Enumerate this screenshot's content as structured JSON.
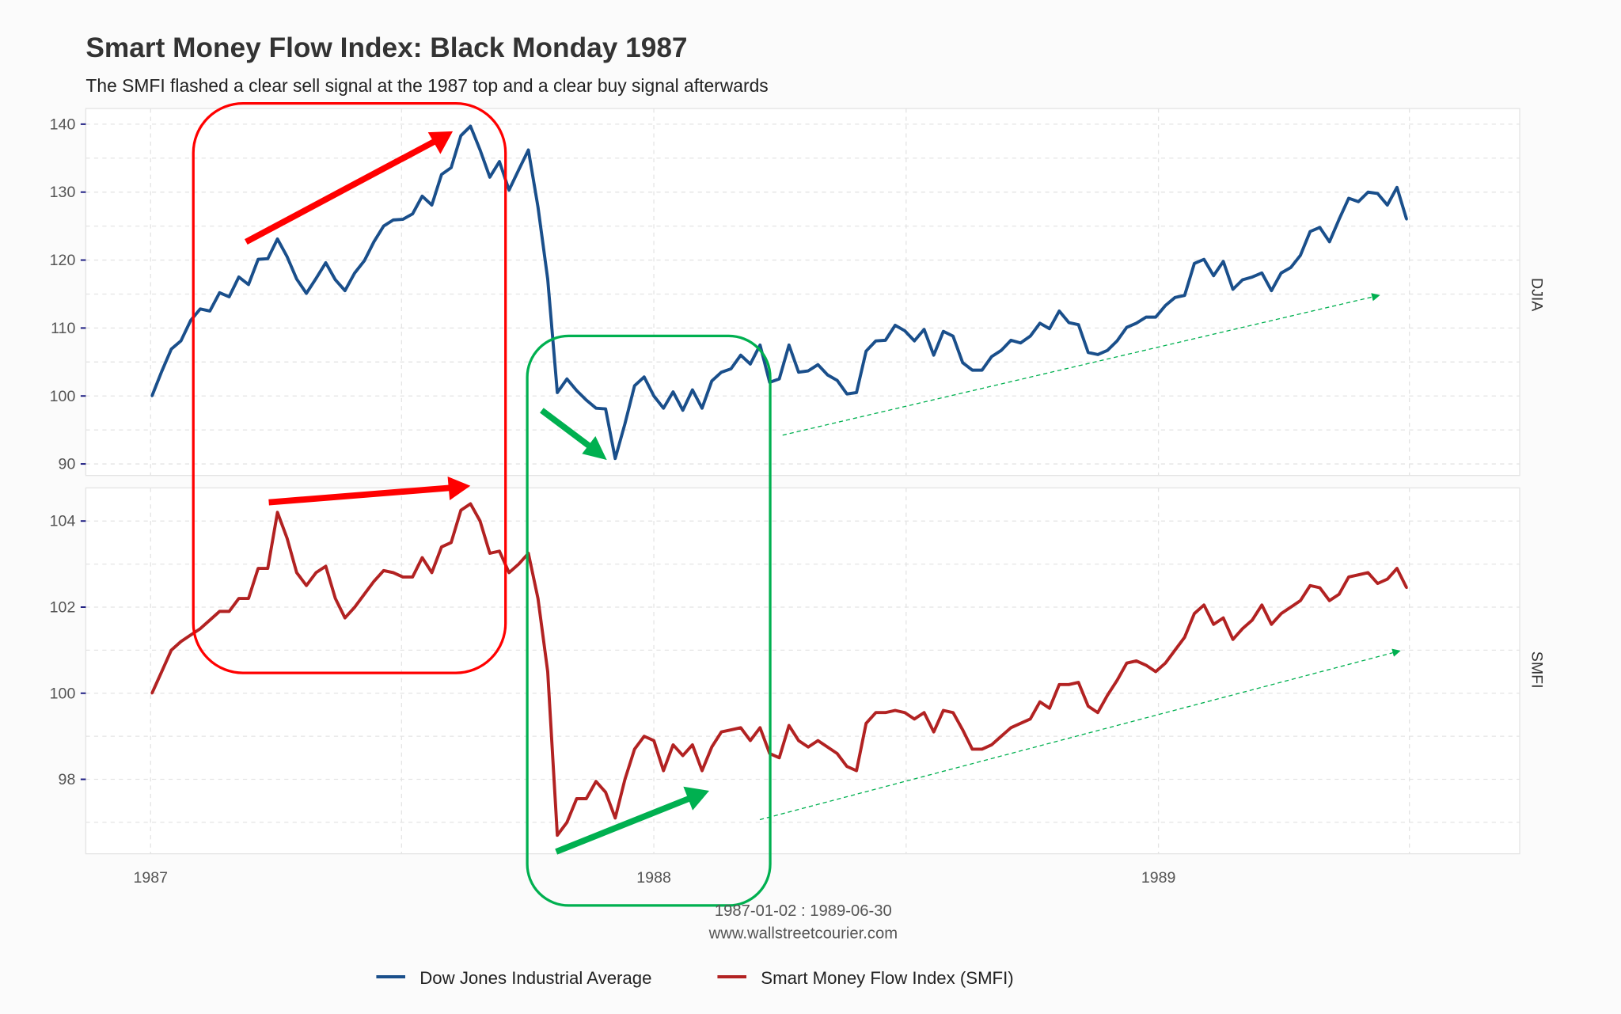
{
  "title": "Smart Money Flow Index: Black Monday 1987",
  "subtitle": "The SMFI flashed a clear sell signal at the 1987 top and a clear buy signal afterwards",
  "caption_range": "1987-01-02 : 1989-06-30",
  "caption_source": "www.wallstreetcourier.com",
  "colors": {
    "djia": "#1a4f8b",
    "smfi": "#b22222",
    "sell_annotation": "#ff0000",
    "buy_annotation": "#00b050",
    "background": "#fbfbfb"
  },
  "chart_data": {
    "type": "line",
    "grid": true,
    "legend_position": "bottom",
    "x_ticks": [
      "1987",
      "1988",
      "1989"
    ],
    "xlim": [
      "1986-11-15",
      "1989-09-20"
    ],
    "dates": [
      "1987-01-02",
      "1987-01-09",
      "1987-01-16",
      "1987-01-23",
      "1987-01-30",
      "1987-02-06",
      "1987-02-13",
      "1987-02-20",
      "1987-02-27",
      "1987-03-06",
      "1987-03-13",
      "1987-03-20",
      "1987-03-27",
      "1987-04-03",
      "1987-04-10",
      "1987-04-17",
      "1987-04-24",
      "1987-05-01",
      "1987-05-08",
      "1987-05-15",
      "1987-05-22",
      "1987-05-29",
      "1987-06-05",
      "1987-06-12",
      "1987-06-19",
      "1987-06-26",
      "1987-07-03",
      "1987-07-10",
      "1987-07-17",
      "1987-07-24",
      "1987-07-31",
      "1987-08-07",
      "1987-08-14",
      "1987-08-21",
      "1987-08-28",
      "1987-09-04",
      "1987-09-11",
      "1987-09-18",
      "1987-09-25",
      "1987-10-02",
      "1987-10-09",
      "1987-10-16",
      "1987-10-23",
      "1987-10-30",
      "1987-11-06",
      "1987-11-13",
      "1987-11-20",
      "1987-11-27",
      "1987-12-04",
      "1987-12-11",
      "1987-12-18",
      "1987-12-25",
      "1988-01-01",
      "1988-01-08",
      "1988-01-15",
      "1988-01-22",
      "1988-01-29",
      "1988-02-05",
      "1988-02-12",
      "1988-02-19",
      "1988-02-26",
      "1988-03-04",
      "1988-03-11",
      "1988-03-18",
      "1988-03-25",
      "1988-04-01",
      "1988-04-08",
      "1988-04-15",
      "1988-04-22",
      "1988-04-29",
      "1988-05-06",
      "1988-05-13",
      "1988-05-20",
      "1988-05-27",
      "1988-06-03",
      "1988-06-10",
      "1988-06-17",
      "1988-06-24",
      "1988-07-01",
      "1988-07-08",
      "1988-07-15",
      "1988-07-22",
      "1988-07-29",
      "1988-08-05",
      "1988-08-12",
      "1988-08-19",
      "1988-08-26",
      "1988-09-02",
      "1988-09-09",
      "1988-09-16",
      "1988-09-23",
      "1988-09-30",
      "1988-10-07",
      "1988-10-14",
      "1988-10-21",
      "1988-10-28",
      "1988-11-04",
      "1988-11-11",
      "1988-11-18",
      "1988-11-25",
      "1988-12-02",
      "1988-12-09",
      "1988-12-16",
      "1988-12-23",
      "1988-12-30",
      "1989-01-06",
      "1989-01-13",
      "1989-01-20",
      "1989-01-27",
      "1989-02-03",
      "1989-02-10",
      "1989-02-17",
      "1989-02-24",
      "1989-03-03",
      "1989-03-10",
      "1989-03-17",
      "1989-03-24",
      "1989-03-31",
      "1989-04-07",
      "1989-04-14",
      "1989-04-21",
      "1989-04-28",
      "1989-05-05",
      "1989-05-12",
      "1989-05-19",
      "1989-05-26",
      "1989-06-02",
      "1989-06-09",
      "1989-06-16",
      "1989-06-23",
      "1989-06-30"
    ],
    "panels": [
      {
        "strip_label": "DJIA",
        "ylim": [
          88.3,
          142.3
        ],
        "y_ticks": [
          "90",
          "100",
          "110",
          "120",
          "130",
          "140"
        ],
        "series": {
          "name": "Dow Jones Industrial Average",
          "values": [
            100.0,
            103.6,
            106.9,
            108.1,
            111.1,
            112.8,
            112.5,
            115.2,
            114.6,
            117.5,
            116.4,
            120.1,
            120.2,
            123.1,
            120.5,
            117.2,
            115.1,
            117.3,
            119.6,
            117.1,
            115.5,
            118.1,
            119.9,
            122.7,
            125.0,
            125.9,
            126.0,
            126.8,
            129.4,
            128.1,
            132.6,
            133.6,
            138.3,
            139.7,
            136.2,
            132.2,
            134.5,
            130.3,
            133.3,
            136.2,
            127.8,
            117.2,
            100.5,
            102.5,
            100.8,
            99.4,
            98.2,
            98.1,
            90.8,
            95.9,
            101.5,
            102.8,
            100.0,
            98.2,
            100.6,
            97.9,
            100.9,
            98.2,
            102.2,
            103.5,
            104.0,
            106.0,
            104.7,
            107.5,
            102.0,
            102.5,
            107.5,
            103.5,
            103.7,
            104.6,
            103.1,
            102.3,
            100.3,
            100.5,
            106.6,
            108.1,
            108.2,
            110.4,
            109.6,
            108.1,
            109.8,
            106.0,
            109.5,
            108.8,
            104.9,
            103.8,
            103.8,
            105.8,
            106.7,
            108.2,
            107.8,
            108.8,
            110.7,
            109.9,
            112.5,
            110.8,
            110.5,
            106.4,
            106.1,
            106.7,
            108.1,
            110.1,
            110.7,
            111.6,
            111.6,
            113.3,
            114.5,
            114.8,
            119.5,
            120.1,
            117.7,
            119.8,
            115.7,
            117.1,
            117.5,
            118.1,
            115.5,
            118.1,
            118.9,
            120.7,
            124.2,
            124.8,
            122.7,
            126.0,
            129.1,
            128.6,
            130.0,
            129.8,
            128.1,
            130.7,
            126.0
          ]
        }
      },
      {
        "strip_label": "SMFI",
        "ylim": [
          96.27,
          104.77
        ],
        "y_ticks": [
          "98",
          "100",
          "102",
          "104"
        ],
        "series": {
          "name": "Smart Money Flow Index (SMFI)",
          "values": [
            100.0,
            100.5,
            101.0,
            101.2,
            101.35,
            101.5,
            101.7,
            101.9,
            101.9,
            102.2,
            102.2,
            102.9,
            102.9,
            104.2,
            103.6,
            102.8,
            102.5,
            102.8,
            102.95,
            102.2,
            101.75,
            102.0,
            102.3,
            102.6,
            102.85,
            102.8,
            102.7,
            102.7,
            103.15,
            102.8,
            103.4,
            103.5,
            104.25,
            104.4,
            104.0,
            103.25,
            103.3,
            102.8,
            103.0,
            103.25,
            102.2,
            100.5,
            96.7,
            97.0,
            97.55,
            97.55,
            97.95,
            97.7,
            97.1,
            98.0,
            98.7,
            99.0,
            98.9,
            98.2,
            98.8,
            98.55,
            98.8,
            98.2,
            98.75,
            99.1,
            99.15,
            99.2,
            98.9,
            99.2,
            98.6,
            98.5,
            99.25,
            98.9,
            98.75,
            98.9,
            98.75,
            98.6,
            98.3,
            98.2,
            99.3,
            99.55,
            99.55,
            99.6,
            99.55,
            99.4,
            99.55,
            99.1,
            99.6,
            99.55,
            99.15,
            98.7,
            98.7,
            98.8,
            99.0,
            99.2,
            99.3,
            99.4,
            99.8,
            99.65,
            100.2,
            100.2,
            100.25,
            99.7,
            99.55,
            99.95,
            100.3,
            100.7,
            100.75,
            100.65,
            100.5,
            100.7,
            101.0,
            101.3,
            101.85,
            102.05,
            101.6,
            101.75,
            101.25,
            101.5,
            101.7,
            102.05,
            101.6,
            101.85,
            102.0,
            102.15,
            102.5,
            102.45,
            102.15,
            102.3,
            102.7,
            102.75,
            102.8,
            102.55,
            102.65,
            102.9,
            102.45
          ]
        }
      }
    ]
  }
}
